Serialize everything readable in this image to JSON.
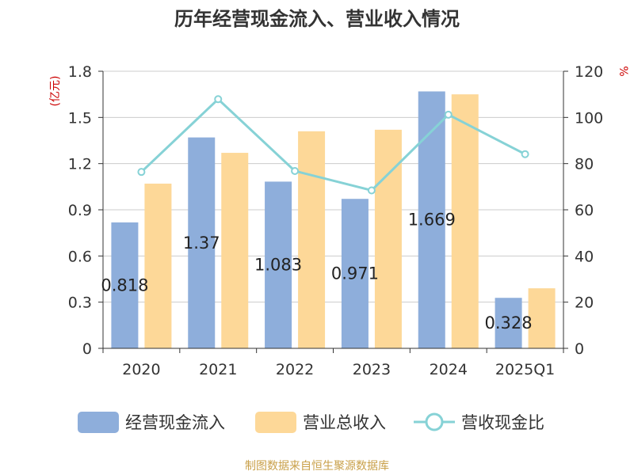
{
  "chart_data": {
    "type": "bar",
    "title": "历年经营现金流入、营业收入情况",
    "categories": [
      "2020",
      "2021",
      "2022",
      "2023",
      "2024",
      "2025Q1"
    ],
    "y_left": {
      "label": "(亿元)",
      "ylim": [
        0,
        1.8
      ],
      "ticks": [
        "0",
        "0.3",
        "0.6",
        "0.9",
        "1.2",
        "1.5",
        "1.8"
      ]
    },
    "y_right": {
      "label": "%",
      "ylim": [
        0,
        120
      ],
      "ticks": [
        "0",
        "20",
        "40",
        "60",
        "80",
        "100",
        "120"
      ]
    },
    "series": [
      {
        "name": "经营现金流入",
        "type": "bar",
        "axis": "left",
        "color": "#8eaedb",
        "values": [
          0.818,
          1.37,
          1.083,
          0.971,
          1.669,
          0.328
        ],
        "data_labels": [
          "0.818",
          "1.37",
          "1.083",
          "0.971",
          "1.669",
          "0.328"
        ]
      },
      {
        "name": "营业总收入",
        "type": "bar",
        "axis": "left",
        "color": "#fdd898",
        "values": [
          1.07,
          1.27,
          1.41,
          1.42,
          1.65,
          0.39
        ]
      },
      {
        "name": "营收现金比",
        "type": "line",
        "axis": "right",
        "color": "#86d2d6",
        "values": [
          76.4,
          107.9,
          76.8,
          68.4,
          101.2,
          84.1
        ]
      }
    ],
    "grid": true,
    "legend": "bottom"
  },
  "footer": "制图数据来自恒生聚源数据库"
}
